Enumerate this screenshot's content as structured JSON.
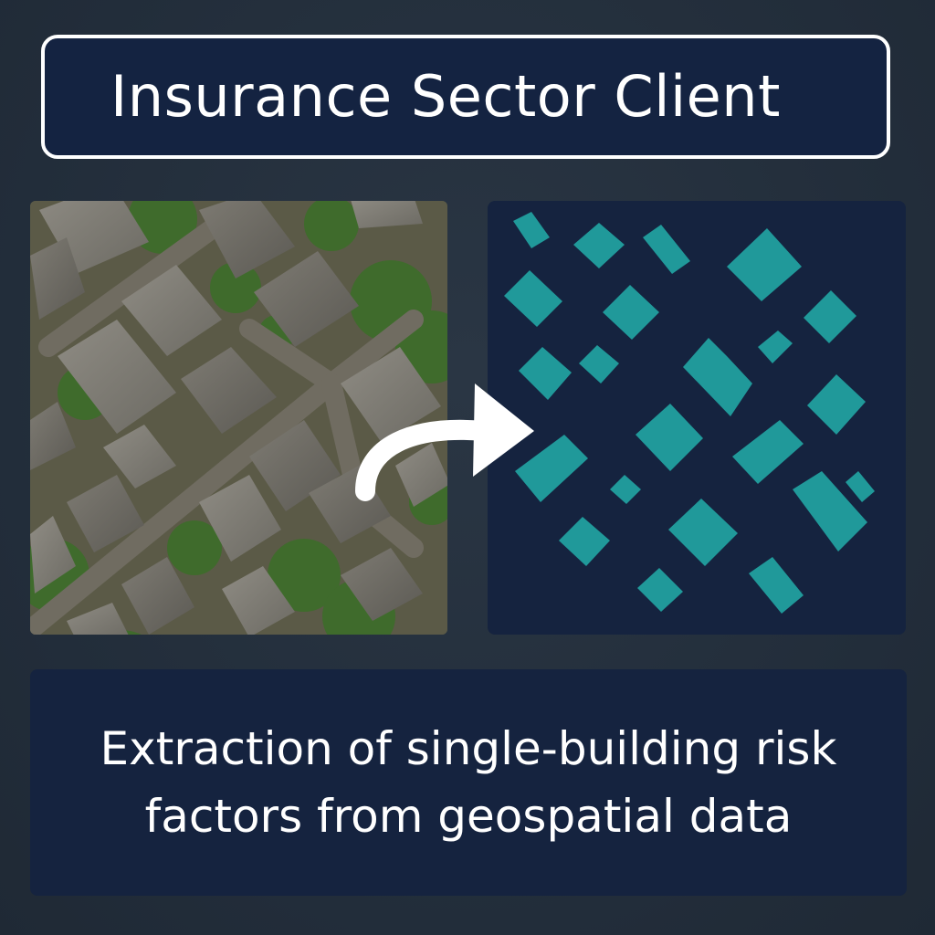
{
  "header": {
    "title": "Insurance Sector Client"
  },
  "aerial_image": {
    "icon": "aerial-photo-of-residential-buildings"
  },
  "transform_arrow": {
    "icon": "curved-arrow-right-icon",
    "color": "#ffffff"
  },
  "footprints": {
    "icon": "building-footprint-polygons",
    "fill_color": "#20999a",
    "background_color": "#15233f"
  },
  "caption": {
    "line1": "Extraction of single-building risk",
    "line2": "factors from geospatial data"
  },
  "colors": {
    "page_background": "#243140",
    "panel_background": "#15233f",
    "accent": "#20999a",
    "text": "#ffffff"
  }
}
